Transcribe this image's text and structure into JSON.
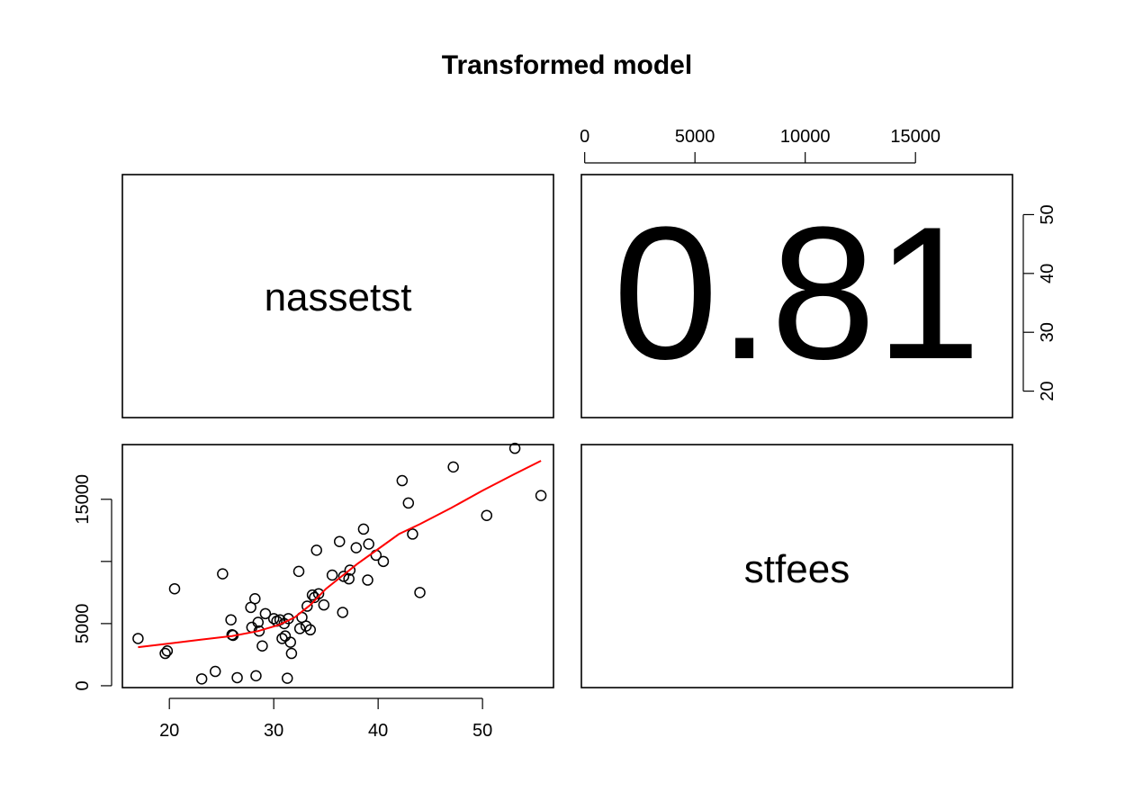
{
  "chart_data": {
    "type": "scatter",
    "title": "Transformed model",
    "variables": [
      "nassetst",
      "stfees"
    ],
    "correlation_label": "0.81",
    "colors": {
      "smooth_line": "#ff0000",
      "points": "#000000"
    },
    "x_axis_bottom": {
      "ticks": [
        20,
        30,
        40,
        50
      ],
      "range": [
        15.5,
        56.8
      ]
    },
    "x_axis_top": {
      "ticks": [
        0,
        5000,
        10000,
        15000
      ],
      "range": [
        -150,
        19400
      ]
    },
    "y_axis_left": {
      "ticks": [
        0,
        5000,
        10000,
        15000
      ],
      "labels": [
        "0",
        "5000",
        "",
        "15000"
      ],
      "range": [
        -150,
        19400
      ]
    },
    "y_axis_right": {
      "ticks": [
        20,
        30,
        40,
        50
      ],
      "range": [
        15.5,
        56.8
      ]
    },
    "points": [
      {
        "x": 17.0,
        "y": 3800
      },
      {
        "x": 19.6,
        "y": 2600
      },
      {
        "x": 19.8,
        "y": 2800
      },
      {
        "x": 20.5,
        "y": 7800
      },
      {
        "x": 23.1,
        "y": 550
      },
      {
        "x": 24.4,
        "y": 1150
      },
      {
        "x": 25.1,
        "y": 9000
      },
      {
        "x": 25.9,
        "y": 5300
      },
      {
        "x": 26.0,
        "y": 4100
      },
      {
        "x": 26.1,
        "y": 4050
      },
      {
        "x": 26.5,
        "y": 650
      },
      {
        "x": 27.8,
        "y": 6300
      },
      {
        "x": 27.9,
        "y": 4700
      },
      {
        "x": 28.2,
        "y": 7000
      },
      {
        "x": 28.3,
        "y": 800
      },
      {
        "x": 28.5,
        "y": 5100
      },
      {
        "x": 28.6,
        "y": 4400
      },
      {
        "x": 28.9,
        "y": 3200
      },
      {
        "x": 29.2,
        "y": 5800
      },
      {
        "x": 30.0,
        "y": 5400
      },
      {
        "x": 30.3,
        "y": 5200
      },
      {
        "x": 30.6,
        "y": 5300
      },
      {
        "x": 30.8,
        "y": 3800
      },
      {
        "x": 31.0,
        "y": 5000
      },
      {
        "x": 31.1,
        "y": 4000
      },
      {
        "x": 31.3,
        "y": 600
      },
      {
        "x": 31.4,
        "y": 5400
      },
      {
        "x": 31.6,
        "y": 3500
      },
      {
        "x": 31.7,
        "y": 2600
      },
      {
        "x": 32.4,
        "y": 9200
      },
      {
        "x": 32.5,
        "y": 4600
      },
      {
        "x": 32.7,
        "y": 5500
      },
      {
        "x": 33.1,
        "y": 4800
      },
      {
        "x": 33.2,
        "y": 6400
      },
      {
        "x": 33.5,
        "y": 4500
      },
      {
        "x": 33.7,
        "y": 7300
      },
      {
        "x": 33.9,
        "y": 7100
      },
      {
        "x": 34.1,
        "y": 10900
      },
      {
        "x": 34.3,
        "y": 7400
      },
      {
        "x": 34.8,
        "y": 6500
      },
      {
        "x": 35.6,
        "y": 8900
      },
      {
        "x": 36.3,
        "y": 11600
      },
      {
        "x": 36.6,
        "y": 5900
      },
      {
        "x": 36.7,
        "y": 8800
      },
      {
        "x": 37.2,
        "y": 8600
      },
      {
        "x": 37.3,
        "y": 9300
      },
      {
        "x": 37.9,
        "y": 11100
      },
      {
        "x": 38.6,
        "y": 12600
      },
      {
        "x": 39.0,
        "y": 8500
      },
      {
        "x": 39.1,
        "y": 11400
      },
      {
        "x": 39.8,
        "y": 10500
      },
      {
        "x": 40.5,
        "y": 10000
      },
      {
        "x": 42.3,
        "y": 16500
      },
      {
        "x": 42.9,
        "y": 14700
      },
      {
        "x": 43.3,
        "y": 12200
      },
      {
        "x": 44.0,
        "y": 7500
      },
      {
        "x": 47.2,
        "y": 17600
      },
      {
        "x": 50.4,
        "y": 13700
      },
      {
        "x": 53.1,
        "y": 19100
      },
      {
        "x": 55.6,
        "y": 15300
      }
    ],
    "smooth_line": [
      {
        "x": 17.0,
        "y": 3100
      },
      {
        "x": 20.0,
        "y": 3400
      },
      {
        "x": 23.0,
        "y": 3700
      },
      {
        "x": 26.0,
        "y": 4000
      },
      {
        "x": 28.5,
        "y": 4400
      },
      {
        "x": 30.5,
        "y": 4900
      },
      {
        "x": 32.0,
        "y": 5500
      },
      {
        "x": 33.5,
        "y": 6500
      },
      {
        "x": 35.0,
        "y": 7800
      },
      {
        "x": 36.5,
        "y": 8800
      },
      {
        "x": 38.0,
        "y": 9800
      },
      {
        "x": 40.0,
        "y": 11000
      },
      {
        "x": 42.0,
        "y": 12200
      },
      {
        "x": 44.0,
        "y": 13000
      },
      {
        "x": 47.0,
        "y": 14300
      },
      {
        "x": 50.0,
        "y": 15700
      },
      {
        "x": 53.0,
        "y": 17000
      },
      {
        "x": 55.6,
        "y": 18100
      }
    ]
  }
}
